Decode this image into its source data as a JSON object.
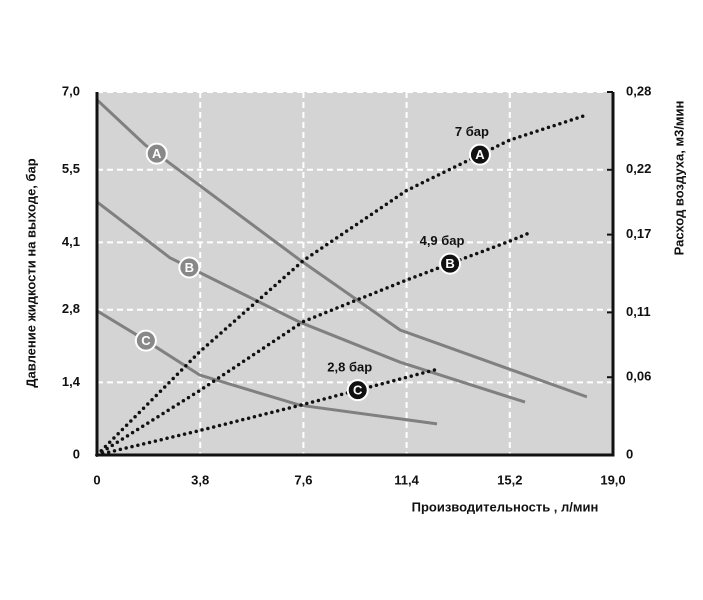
{
  "chart_data": {
    "type": "line",
    "x_label": "Производительность , л/мин",
    "y_label": "Давление жидкости на выходе, бар",
    "y2_label": "Расход воздуха, м3/мин",
    "xlim": [
      0,
      19.0
    ],
    "xticks": [
      0,
      {
        "value": 3.8,
        "label": "3,8"
      },
      {
        "value": 7.6,
        "label": "7,6"
      },
      {
        "value": 11.4,
        "label": "11,4"
      },
      {
        "value": 15.2,
        "label": "15,2"
      },
      {
        "value": 19.0,
        "label": "19,0"
      }
    ],
    "ylim": [
      0,
      7.0
    ],
    "yticks": [
      0,
      {
        "value": 1.4,
        "label": "1,4"
      },
      {
        "value": 2.8,
        "label": "2,8"
      },
      {
        "value": 4.1,
        "label": "4,1"
      },
      {
        "value": 5.5,
        "label": "5,5"
      },
      {
        "value": 7.0,
        "label": "7,0"
      }
    ],
    "y2lim": [
      0,
      0.28
    ],
    "y2ticks": [
      0,
      {
        "value": 0.06,
        "label": "0,06"
      },
      {
        "value": 0.11,
        "label": "0,11"
      },
      {
        "value": 0.17,
        "label": "0,17"
      },
      {
        "value": 0.22,
        "label": "0,22"
      },
      {
        "value": 0.28,
        "label": "0,28"
      }
    ],
    "grid": true,
    "series": [
      {
        "name": "A",
        "color": "#808080",
        "style": "solid",
        "x": [
          0,
          1.77,
          7.47,
          11.16,
          18.04
        ],
        "values": [
          6.85,
          5.98,
          3.76,
          2.41,
          1.12
        ]
      },
      {
        "name": "B",
        "color": "#808080",
        "style": "solid",
        "x": [
          0,
          2.69,
          7.47,
          11.16,
          15.76
        ],
        "values": [
          4.88,
          3.8,
          2.56,
          1.79,
          1.02
        ]
      },
      {
        "name": "C",
        "color": "#808080",
        "style": "solid",
        "x": [
          0,
          1.58,
          3.79,
          7.47,
          12.52
        ],
        "values": [
          2.78,
          2.28,
          1.54,
          0.96,
          0.6
        ]
      },
      {
        "name": "7 бар",
        "color": "#111111",
        "style": "dotted",
        "axis": "y2",
        "x": [
          0,
          3.8,
          7.6,
          11.4,
          15.2,
          18.0
        ],
        "values": [
          0,
          0.08,
          0.15,
          0.204,
          0.243,
          0.262
        ]
      },
      {
        "name": "4,9 бар",
        "color": "#111111",
        "style": "dotted",
        "axis": "y2",
        "x": [
          0,
          3.8,
          7.6,
          11.4,
          15.2,
          16.0
        ],
        "values": [
          0,
          0.05,
          0.103,
          0.135,
          0.165,
          0.172
        ]
      },
      {
        "name": "2,8 бар",
        "color": "#111111",
        "style": "dotted",
        "axis": "y2",
        "x": [
          0,
          3.8,
          7.6,
          9.6,
          12.5
        ],
        "values": [
          0,
          0.019,
          0.039,
          0.05,
          0.066
        ]
      }
    ]
  }
}
